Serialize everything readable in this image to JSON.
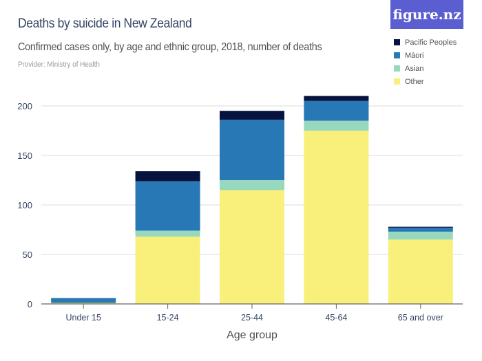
{
  "header": {
    "title": "Deaths by suicide in New Zealand",
    "subtitle": "Confirmed cases only, by age and ethnic group, 2018, number of deaths",
    "provider": "Provider: Ministry of Health",
    "logo": "figure.nz"
  },
  "colors": {
    "Pacific Peoples": "#06133f",
    "Māori": "#2878b6",
    "Asian": "#97d8be",
    "Other": "#f8f07a",
    "logo_bg": "#5a5ed0"
  },
  "chart_data": {
    "type": "bar",
    "stacked": true,
    "title": "Deaths by suicide in New Zealand",
    "subtitle": "Confirmed cases only, by age and ethnic group, 2018, number of deaths",
    "xlabel": "Age group",
    "ylabel": "",
    "ylim": [
      0,
      210
    ],
    "yticks": [
      0,
      50,
      100,
      150,
      200
    ],
    "grid": true,
    "legend_position": "top-right",
    "categories": [
      "Under 15",
      "15-24",
      "25-44",
      "45-64",
      "65 and over"
    ],
    "series": [
      {
        "name": "Other",
        "values": [
          1,
          68,
          115,
          175,
          65
        ]
      },
      {
        "name": "Asian",
        "values": [
          0,
          6,
          10,
          10,
          8
        ]
      },
      {
        "name": "Māori",
        "values": [
          5,
          50,
          61,
          20,
          4
        ]
      },
      {
        "name": "Pacific Peoples",
        "values": [
          0,
          10,
          9,
          5,
          1
        ]
      }
    ],
    "legend": [
      "Pacific Peoples",
      "Māori",
      "Asian",
      "Other"
    ]
  }
}
